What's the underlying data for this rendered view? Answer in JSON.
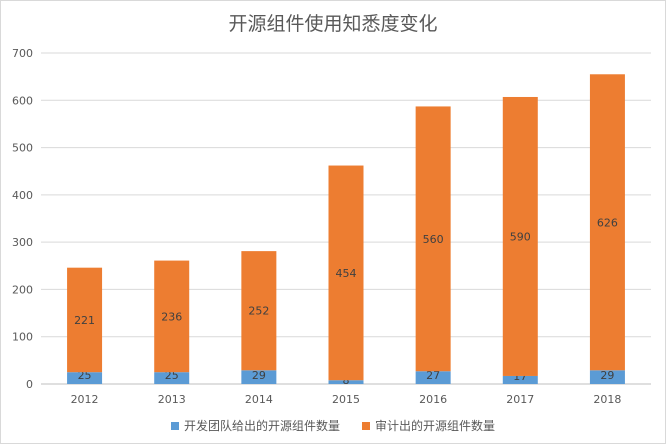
{
  "chart_data": {
    "type": "bar",
    "stacked": true,
    "title": "开源组件使用知悉度变化",
    "categories": [
      "2012",
      "2013",
      "2014",
      "2015",
      "2016",
      "2017",
      "2018"
    ],
    "series": [
      {
        "name": "开发团队给出的开源组件数量",
        "color": "#5b9bd5",
        "values": [
          25,
          25,
          29,
          8,
          27,
          17,
          29
        ]
      },
      {
        "name": "审计出的开源组件数量",
        "color": "#ed7d31",
        "values": [
          221,
          236,
          252,
          454,
          560,
          590,
          626
        ]
      }
    ],
    "ylim": [
      0,
      700
    ],
    "yticks": [
      0,
      100,
      200,
      300,
      400,
      500,
      600,
      700
    ],
    "grid": true,
    "legend_position": "bottom"
  }
}
